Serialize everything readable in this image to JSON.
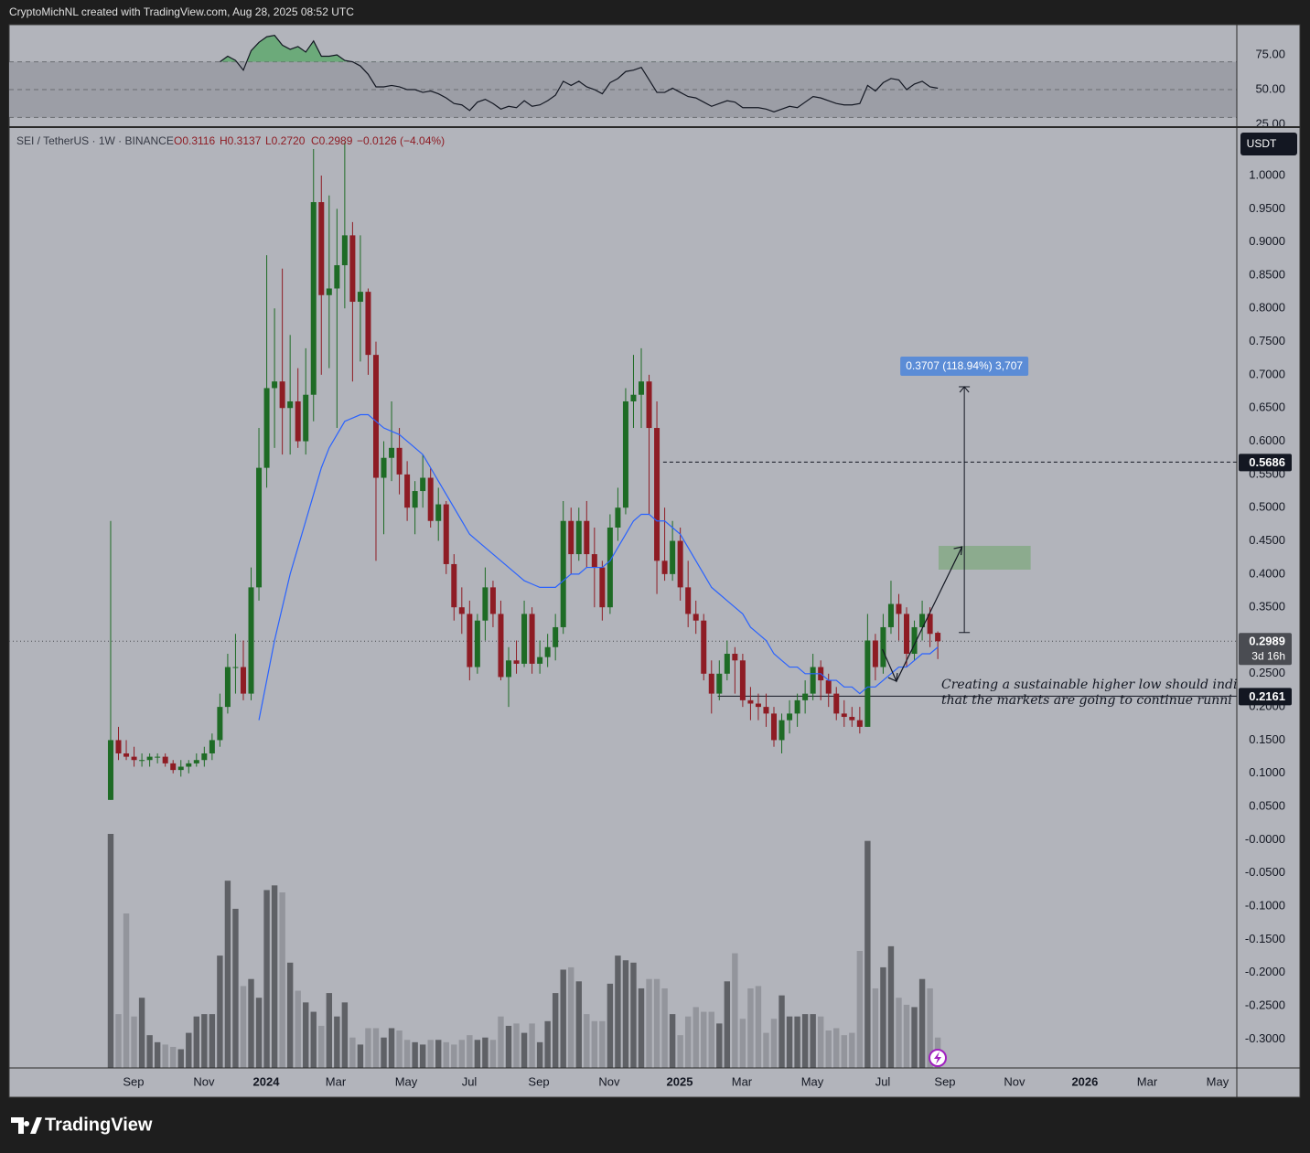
{
  "header": "CryptoMichNL created with TradingView.com, Aug 28, 2025 08:52 UTC",
  "footer": "TradingView",
  "chart_data": [
    {
      "type": "line",
      "color": "#131722",
      "ylim": [
        23.7,
        96.7
      ],
      "yticks": [
        {
          "value": 75,
          "label": "75.00"
        },
        {
          "value": 50,
          "label": "50.00"
        },
        {
          "value": 25,
          "label": "25.00"
        }
      ],
      "band": [
        30,
        70
      ],
      "band_color": "#9c9ea6",
      "overbought_color": "#5aa86a",
      "values": [
        null,
        null,
        null,
        null,
        null,
        null,
        null,
        null,
        null,
        null,
        null,
        null,
        null,
        null,
        70,
        74,
        71,
        64,
        78,
        84,
        88,
        89,
        82,
        79,
        81,
        77,
        85,
        74,
        74,
        75,
        71,
        70,
        67,
        61,
        52,
        52,
        53,
        52,
        50,
        50,
        48,
        49,
        47,
        44,
        40,
        39,
        35,
        41,
        43,
        40,
        36,
        38,
        37,
        42,
        38,
        39,
        42,
        46,
        56,
        53,
        56,
        52,
        50,
        47,
        55,
        58,
        63,
        64,
        66,
        57,
        48,
        48,
        51,
        48,
        45,
        44,
        41,
        38,
        40,
        42,
        41,
        37,
        37,
        37,
        36,
        34,
        36,
        38,
        37,
        41,
        45,
        44,
        42,
        40,
        39,
        39,
        40,
        53,
        49,
        55,
        58,
        57,
        50,
        54,
        56,
        52,
        51
      ]
    },
    {
      "type": "candlestick",
      "symbol": "SEI / TetherUS · 1W · BINANCE",
      "ohlc_legend": [
        "O0.3116",
        "H0.3137",
        "L0.2720",
        "C0.2989",
        "−0.0126 (−4.04%)"
      ],
      "currency": "USDT",
      "up_color": "#1e6b25",
      "down_color": "#8e1c24",
      "ma_color": "#2962ff",
      "volume_up_color": "#5f6166",
      "volume_down_color": "#93959c",
      "xlim": [
        -13.01,
        144.32
      ],
      "xticks": [
        {
          "value": 2.93,
          "label": "Sep"
        },
        {
          "value": 11.96,
          "label": "Nov"
        },
        {
          "value": 19.93,
          "label": "2024"
        },
        {
          "value": 28.84,
          "label": "Mar"
        },
        {
          "value": 37.87,
          "label": "May"
        },
        {
          "value": 45.96,
          "label": "Jul"
        },
        {
          "value": 54.87,
          "label": "Sep"
        },
        {
          "value": 63.89,
          "label": "Nov"
        },
        {
          "value": 72.92,
          "label": "2025"
        },
        {
          "value": 80.89,
          "label": "Mar"
        },
        {
          "value": 89.92,
          "label": "May"
        },
        {
          "value": 98.95,
          "label": "Jul"
        },
        {
          "value": 106.92,
          "label": "Sep"
        },
        {
          "value": 115.83,
          "label": "Nov"
        },
        {
          "value": 124.85,
          "label": "2026"
        },
        {
          "value": 132.83,
          "label": "Mar"
        },
        {
          "value": 141.85,
          "label": "May"
        }
      ],
      "ylim": [
        -0.3436,
        1.0716
      ],
      "yticks": [
        {
          "value": 1,
          "label": "1.0000"
        },
        {
          "value": 0.95,
          "label": "0.9500"
        },
        {
          "value": 0.9,
          "label": "0.9000"
        },
        {
          "value": 0.85,
          "label": "0.8500"
        },
        {
          "value": 0.8,
          "label": "0.8000"
        },
        {
          "value": 0.75,
          "label": "0.7500"
        },
        {
          "value": 0.7,
          "label": "0.7000"
        },
        {
          "value": 0.65,
          "label": "0.6500"
        },
        {
          "value": 0.6,
          "label": "0.6000"
        },
        {
          "value": 0.55,
          "label": "0.5500"
        },
        {
          "value": 0.5,
          "label": "0.5000"
        },
        {
          "value": 0.45,
          "label": "0.4500"
        },
        {
          "value": 0.4,
          "label": "0.4000"
        },
        {
          "value": 0.35,
          "label": "0.3500"
        },
        {
          "value": 0.3,
          "label": "0.3000"
        },
        {
          "value": 0.25,
          "label": "0.2500"
        },
        {
          "value": 0.2,
          "label": "0.2000"
        },
        {
          "value": 0.15,
          "label": "0.1500"
        },
        {
          "value": 0.1,
          "label": "0.1000"
        },
        {
          "value": 0.05,
          "label": "0.0500"
        },
        {
          "value": 0,
          "label": "-0.0000"
        },
        {
          "value": -0.05,
          "label": "-0.0500"
        },
        {
          "value": -0.1,
          "label": "-0.1000"
        },
        {
          "value": -0.15,
          "label": "-0.1500"
        },
        {
          "value": -0.2,
          "label": "-0.2000"
        },
        {
          "value": -0.25,
          "label": "-0.2500"
        },
        {
          "value": -0.3,
          "label": "-0.3000"
        }
      ],
      "candles": [
        [
          0.06,
          0.48,
          0.06,
          0.15
        ],
        [
          0.15,
          0.17,
          0.12,
          0.13
        ],
        [
          0.13,
          0.15,
          0.12,
          0.125
        ],
        [
          0.125,
          0.14,
          0.11,
          0.12
        ],
        [
          0.12,
          0.13,
          0.11,
          0.12
        ],
        [
          0.12,
          0.13,
          0.11,
          0.125
        ],
        [
          0.125,
          0.13,
          0.115,
          0.125
        ],
        [
          0.125,
          0.13,
          0.11,
          0.115
        ],
        [
          0.115,
          0.12,
          0.1,
          0.105
        ],
        [
          0.105,
          0.12,
          0.095,
          0.11
        ],
        [
          0.11,
          0.12,
          0.1,
          0.115
        ],
        [
          0.115,
          0.13,
          0.11,
          0.12
        ],
        [
          0.12,
          0.14,
          0.11,
          0.13
        ],
        [
          0.13,
          0.16,
          0.12,
          0.15
        ],
        [
          0.15,
          0.22,
          0.14,
          0.2
        ],
        [
          0.2,
          0.28,
          0.19,
          0.26
        ],
        [
          0.26,
          0.31,
          0.22,
          0.26
        ],
        [
          0.26,
          0.3,
          0.21,
          0.22
        ],
        [
          0.22,
          0.41,
          0.21,
          0.38
        ],
        [
          0.38,
          0.62,
          0.36,
          0.56
        ],
        [
          0.56,
          0.88,
          0.53,
          0.68
        ],
        [
          0.68,
          0.8,
          0.59,
          0.69
        ],
        [
          0.69,
          0.86,
          0.58,
          0.65
        ],
        [
          0.65,
          0.76,
          0.58,
          0.66
        ],
        [
          0.66,
          0.71,
          0.59,
          0.6
        ],
        [
          0.6,
          0.74,
          0.58,
          0.67
        ],
        [
          0.67,
          1.04,
          0.63,
          0.96
        ],
        [
          0.96,
          1.0,
          0.7,
          0.82
        ],
        [
          0.82,
          0.97,
          0.71,
          0.83
        ],
        [
          0.83,
          0.95,
          0.62,
          0.865
        ],
        [
          0.865,
          1.05,
          0.8,
          0.91
        ],
        [
          0.91,
          0.93,
          0.69,
          0.81
        ],
        [
          0.81,
          0.91,
          0.72,
          0.825
        ],
        [
          0.825,
          0.83,
          0.7,
          0.73
        ],
        [
          0.73,
          0.75,
          0.42,
          0.545
        ],
        [
          0.545,
          0.6,
          0.46,
          0.575
        ],
        [
          0.575,
          0.66,
          0.54,
          0.59
        ],
        [
          0.59,
          0.62,
          0.52,
          0.55
        ],
        [
          0.55,
          0.57,
          0.48,
          0.5
        ],
        [
          0.5,
          0.54,
          0.46,
          0.525
        ],
        [
          0.525,
          0.58,
          0.5,
          0.545
        ],
        [
          0.545,
          0.56,
          0.47,
          0.48
        ],
        [
          0.48,
          0.53,
          0.45,
          0.505
        ],
        [
          0.505,
          0.51,
          0.4,
          0.415
        ],
        [
          0.415,
          0.43,
          0.33,
          0.35
        ],
        [
          0.35,
          0.38,
          0.31,
          0.34
        ],
        [
          0.34,
          0.36,
          0.24,
          0.26
        ],
        [
          0.26,
          0.34,
          0.25,
          0.33
        ],
        [
          0.33,
          0.41,
          0.3,
          0.38
        ],
        [
          0.38,
          0.39,
          0.32,
          0.34
        ],
        [
          0.34,
          0.36,
          0.24,
          0.245
        ],
        [
          0.245,
          0.29,
          0.2,
          0.27
        ],
        [
          0.27,
          0.3,
          0.25,
          0.265
        ],
        [
          0.265,
          0.36,
          0.26,
          0.34
        ],
        [
          0.34,
          0.35,
          0.25,
          0.265
        ],
        [
          0.265,
          0.3,
          0.25,
          0.275
        ],
        [
          0.275,
          0.31,
          0.26,
          0.29
        ],
        [
          0.29,
          0.34,
          0.27,
          0.32
        ],
        [
          0.32,
          0.51,
          0.31,
          0.48
        ],
        [
          0.48,
          0.5,
          0.4,
          0.43
        ],
        [
          0.43,
          0.5,
          0.42,
          0.48
        ],
        [
          0.48,
          0.51,
          0.41,
          0.43
        ],
        [
          0.43,
          0.47,
          0.35,
          0.41
        ],
        [
          0.41,
          0.42,
          0.33,
          0.35
        ],
        [
          0.35,
          0.49,
          0.34,
          0.47
        ],
        [
          0.47,
          0.53,
          0.45,
          0.5
        ],
        [
          0.5,
          0.68,
          0.49,
          0.66
        ],
        [
          0.66,
          0.73,
          0.62,
          0.67
        ],
        [
          0.67,
          0.74,
          0.62,
          0.69
        ],
        [
          0.69,
          0.7,
          0.49,
          0.62
        ],
        [
          0.62,
          0.66,
          0.37,
          0.42
        ],
        [
          0.42,
          0.5,
          0.39,
          0.4
        ],
        [
          0.4,
          0.48,
          0.39,
          0.45
        ],
        [
          0.45,
          0.47,
          0.36,
          0.38
        ],
        [
          0.38,
          0.42,
          0.32,
          0.34
        ],
        [
          0.34,
          0.36,
          0.31,
          0.33
        ],
        [
          0.33,
          0.34,
          0.24,
          0.25
        ],
        [
          0.25,
          0.27,
          0.19,
          0.22
        ],
        [
          0.22,
          0.27,
          0.21,
          0.25
        ],
        [
          0.25,
          0.3,
          0.24,
          0.28
        ],
        [
          0.28,
          0.29,
          0.22,
          0.27
        ],
        [
          0.27,
          0.28,
          0.2,
          0.21
        ],
        [
          0.21,
          0.23,
          0.18,
          0.205
        ],
        [
          0.205,
          0.22,
          0.18,
          0.2
        ],
        [
          0.2,
          0.22,
          0.17,
          0.19
        ],
        [
          0.19,
          0.2,
          0.14,
          0.15
        ],
        [
          0.15,
          0.19,
          0.13,
          0.18
        ],
        [
          0.18,
          0.21,
          0.16,
          0.19
        ],
        [
          0.19,
          0.22,
          0.17,
          0.21
        ],
        [
          0.21,
          0.24,
          0.19,
          0.22
        ],
        [
          0.22,
          0.28,
          0.21,
          0.26
        ],
        [
          0.26,
          0.27,
          0.21,
          0.24
        ],
        [
          0.24,
          0.25,
          0.2,
          0.22
        ],
        [
          0.22,
          0.23,
          0.18,
          0.19
        ],
        [
          0.19,
          0.21,
          0.17,
          0.185
        ],
        [
          0.185,
          0.2,
          0.17,
          0.18
        ],
        [
          0.18,
          0.2,
          0.16,
          0.17
        ],
        [
          0.17,
          0.34,
          0.17,
          0.3
        ],
        [
          0.3,
          0.31,
          0.24,
          0.26
        ],
        [
          0.26,
          0.34,
          0.25,
          0.32
        ],
        [
          0.32,
          0.39,
          0.31,
          0.355
        ],
        [
          0.355,
          0.37,
          0.3,
          0.34
        ],
        [
          0.34,
          0.35,
          0.26,
          0.28
        ],
        [
          0.28,
          0.33,
          0.27,
          0.32
        ],
        [
          0.32,
          0.36,
          0.3,
          0.34
        ],
        [
          0.34,
          0.35,
          0.29,
          0.31
        ],
        [
          0.3116,
          0.3137,
          0.272,
          0.2989
        ]
      ],
      "ma": [
        null,
        null,
        null,
        null,
        null,
        null,
        null,
        null,
        null,
        null,
        null,
        null,
        null,
        null,
        null,
        null,
        null,
        null,
        null,
        0.18,
        0.24,
        0.3,
        0.35,
        0.4,
        0.44,
        0.48,
        0.52,
        0.56,
        0.59,
        0.61,
        0.63,
        0.635,
        0.64,
        0.64,
        0.63,
        0.62,
        0.615,
        0.61,
        0.6,
        0.59,
        0.58,
        0.56,
        0.54,
        0.52,
        0.5,
        0.48,
        0.46,
        0.45,
        0.44,
        0.43,
        0.42,
        0.41,
        0.4,
        0.39,
        0.385,
        0.38,
        0.38,
        0.38,
        0.39,
        0.4,
        0.4,
        0.41,
        0.41,
        0.41,
        0.42,
        0.44,
        0.46,
        0.48,
        0.49,
        0.49,
        0.48,
        0.48,
        0.47,
        0.46,
        0.44,
        0.42,
        0.4,
        0.38,
        0.37,
        0.36,
        0.35,
        0.34,
        0.32,
        0.31,
        0.3,
        0.28,
        0.27,
        0.26,
        0.26,
        0.25,
        0.25,
        0.25,
        0.24,
        0.24,
        0.23,
        0.23,
        0.22,
        0.23,
        0.23,
        0.24,
        0.25,
        0.26,
        0.26,
        0.27,
        0.28,
        0.28,
        0.29
      ],
      "volume_lim": [
        0,
        100
      ],
      "volume": [
        100,
        23,
        66,
        22,
        30,
        14,
        11,
        10,
        9,
        8,
        15,
        22,
        23,
        23,
        48,
        80,
        68,
        35,
        38,
        30,
        76,
        78,
        75,
        45,
        33,
        28,
        24,
        18,
        32,
        22,
        28,
        13,
        10,
        17,
        17,
        13,
        17,
        16,
        12,
        11,
        10,
        12,
        12,
        11,
        10,
        12,
        14,
        12,
        13,
        12,
        22,
        18,
        19,
        15,
        19,
        11,
        20,
        32,
        42,
        43,
        37,
        23,
        20,
        20,
        36,
        48,
        46,
        45,
        34,
        38,
        38,
        34,
        23,
        14,
        22,
        26,
        24,
        24,
        19,
        37,
        49,
        21,
        34,
        35,
        15,
        21,
        31,
        22,
        22,
        23,
        23,
        22,
        16,
        17,
        14,
        15,
        50,
        97,
        34,
        43,
        52,
        30,
        27,
        26,
        38,
        34,
        13
      ],
      "last_price": {
        "value": 0.2989,
        "label": "0.2989",
        "countdown": "3d 16h"
      },
      "levels": [
        {
          "value": 0.5686,
          "label": "0.5686",
          "from": 70.8,
          "style": "dashed"
        },
        {
          "value": 0.2161,
          "label": "0.2161",
          "from": 77.8,
          "style": "solid"
        }
      ],
      "target_zone": {
        "x": [
          106.1,
          117.9
        ],
        "y": [
          0.4067,
          0.4425
        ],
        "color": "#7fa87f"
      },
      "path_arrow": {
        "x": [
          98.9,
          100.7,
          109.1
        ],
        "y": [
          0.287,
          0.2387,
          0.441
        ]
      },
      "measure": {
        "x": 109.4,
        "from": 0.312,
        "to": 0.682,
        "label": "0.3707 (118.94%) 3,707",
        "color": "#5b8cd6"
      },
      "annotation": [
        "Creating a sustainable higher low should indi",
        "that the markets are going to continue runni"
      ]
    }
  ]
}
